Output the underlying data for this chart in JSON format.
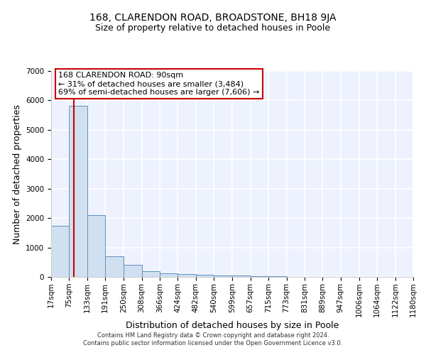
{
  "title": "168, CLARENDON ROAD, BROADSTONE, BH18 9JA",
  "subtitle": "Size of property relative to detached houses in Poole",
  "xlabel": "Distribution of detached houses by size in Poole",
  "ylabel": "Number of detached properties",
  "footer_line1": "Contains HM Land Registry data © Crown copyright and database right 2024.",
  "footer_line2": "Contains public sector information licensed under the Open Government Licence v3.0.",
  "annotation_line1": "168 CLARENDON ROAD: 90sqm",
  "annotation_line2": "← 31% of detached houses are smaller (3,484)",
  "annotation_line3": "69% of semi-detached houses are larger (7,606) →",
  "bar_edges": [
    17,
    75,
    133,
    191,
    250,
    308,
    366,
    424,
    482,
    540,
    599,
    657,
    715,
    773,
    831,
    889,
    947,
    1006,
    1064,
    1122,
    1180
  ],
  "bar_values": [
    1750,
    5820,
    2100,
    700,
    420,
    200,
    130,
    90,
    70,
    50,
    40,
    25,
    15,
    8,
    5,
    4,
    3,
    2,
    1,
    1
  ],
  "bar_color": "#d0e0f0",
  "bar_edge_color": "#6090c0",
  "red_line_x": 90,
  "ylim": [
    0,
    7000
  ],
  "yticks": [
    0,
    1000,
    2000,
    3000,
    4000,
    5000,
    6000,
    7000
  ],
  "bg_color": "#eef2ff",
  "grid_color": "#ffffff",
  "annotation_box_color": "#ffffff",
  "annotation_box_edge": "#cc0000",
  "red_line_color": "#cc0000",
  "title_fontsize": 10,
  "subtitle_fontsize": 9,
  "axis_label_fontsize": 9,
  "tick_fontsize": 7.5,
  "annotation_fontsize": 8
}
